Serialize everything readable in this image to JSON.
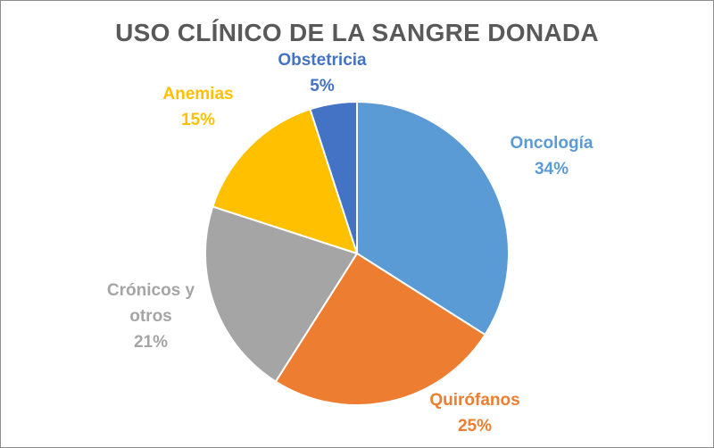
{
  "chart_data": {
    "type": "pie",
    "title": "USO CLÍNICO DE LA SANGRE DONADA",
    "slices": [
      {
        "name": "Oncología",
        "value": 34,
        "value_label": "34%",
        "color": "#5b9bd5"
      },
      {
        "name": "Quirófanos",
        "value": 25,
        "value_label": "25%",
        "color": "#ed7d31"
      },
      {
        "name": "Crónicos y otros",
        "value": 21,
        "value_label": "21%",
        "color": "#a5a5a5"
      },
      {
        "name": "Anemias",
        "value": 15,
        "value_label": "15%",
        "color": "#ffc000"
      },
      {
        "name": "Obstetricia",
        "value": 5,
        "value_label": "5%",
        "color": "#4472c4"
      }
    ],
    "legend": "none",
    "data_labels": "outside"
  }
}
